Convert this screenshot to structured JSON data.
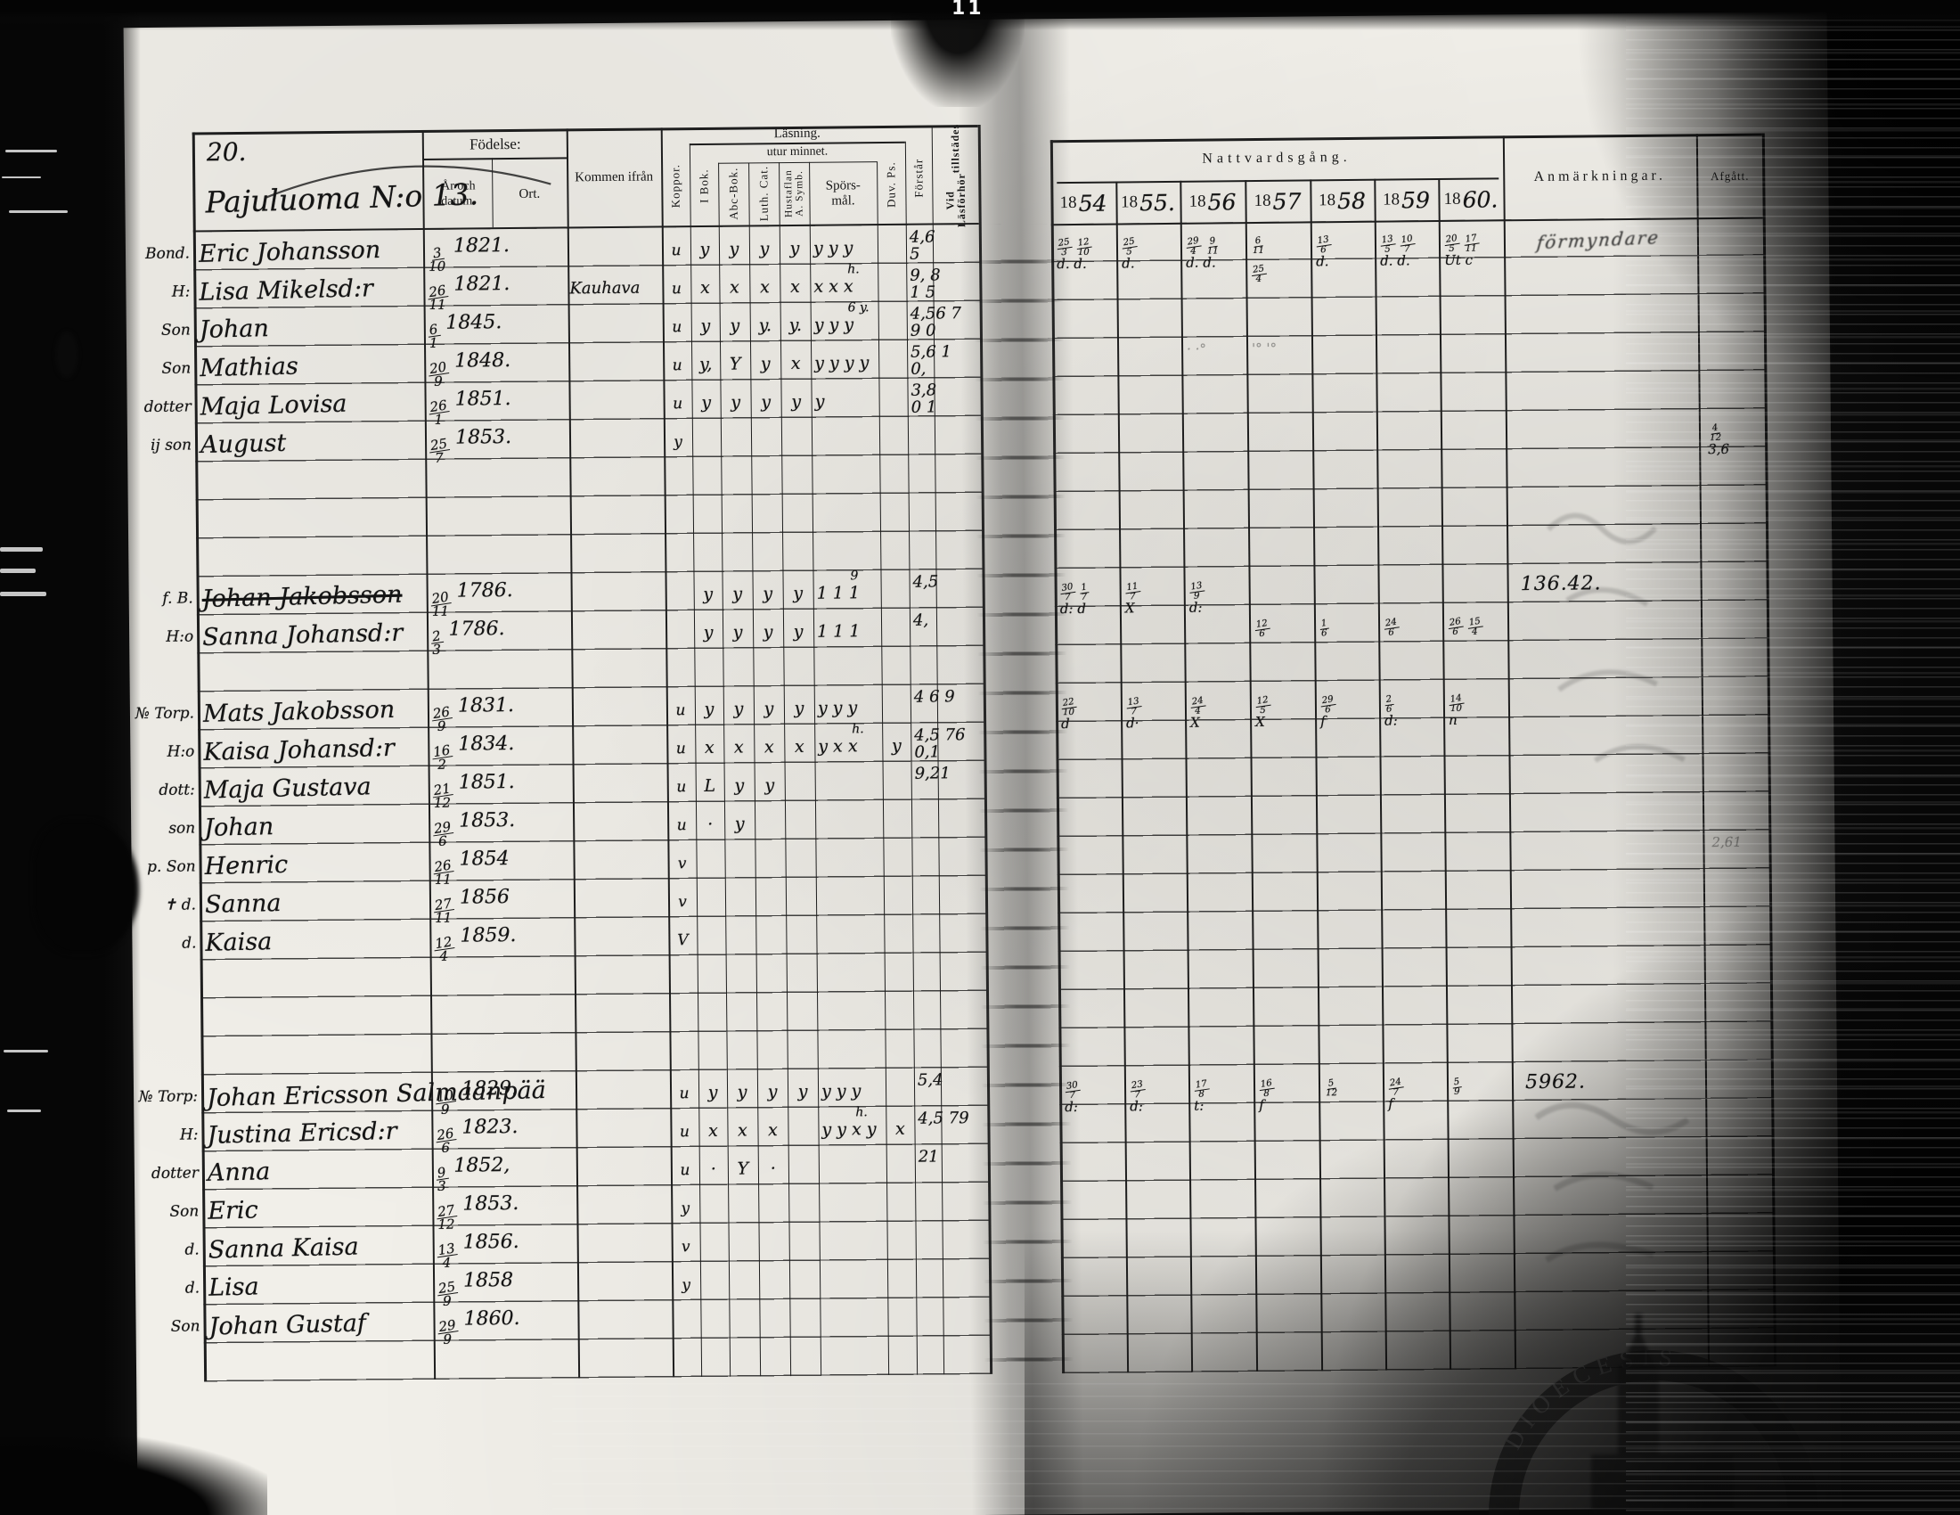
{
  "scan": {
    "top_mark": "11"
  },
  "page": {
    "number": "20.",
    "title": "Pajuluoma N:o 13."
  },
  "table": {
    "fodelse": "Födelse:",
    "ar_och_datum": "År och datum.",
    "ort": "Ort.",
    "kommen_ifran": "Kommen ifrån",
    "koppor": "Koppor.",
    "lasning": "Läsning.",
    "utur_minnet": "utur minnet.",
    "i_bok": "I Bok.",
    "abc_bok": "Abc-Bok.",
    "luth_cat": "Luth. Cat.",
    "hustaflan": "Hustaflan A. Symb.",
    "sporsmal_1": "Spörs-",
    "sporsmal_2": "mål.",
    "duv_ps": "Duv. Ps.",
    "forstar": "Förstår",
    "vid_lasforhor_1": "Vid Läsförhör",
    "vid_lasforhor_2": "tillstädes",
    "nattvardsgang": "Nattvardsgång.",
    "year_print_prefix": "18",
    "years": [
      "1854",
      "1855.",
      "1856",
      "1857",
      "1858",
      "1859",
      "1860."
    ],
    "anmarkningar": "Anmärkningar.",
    "afgatt": "Afgått."
  },
  "records": [
    {
      "line": 0,
      "role": "Bond.",
      "name": "Eric Johansson",
      "born": "3/10 1821.",
      "kop": "u",
      "marks": [
        "y",
        "y",
        "y",
        "y",
        "y y y",
        ""
      ],
      "vid": "4,6|5",
      "comm": [
        "25/3 12/10|d. d.",
        "25/5|d.",
        "29/4 9/11|d. d.",
        "6/11|25/4",
        "13/6|d.",
        "13/5 10/7|d. d.",
        "20/5 17/11|Ut c"
      ],
      "remark": "förmyndare"
    },
    {
      "line": 1,
      "role": "H:",
      "name": "Lisa Mikelsd:r",
      "born": "26/11 1821.",
      "from": "Kauhava",
      "kop": "u",
      "marks": [
        "x",
        "x",
        "x",
        "x",
        "x x x",
        ""
      ],
      "note": "h.",
      "vid": "9, 8|1 5"
    },
    {
      "line": 2,
      "role": "Son",
      "name": "Johan",
      "born": "6/1 1845.",
      "kop": "u",
      "marks": [
        "y",
        "y",
        "y.",
        "y.",
        "y y y",
        ""
      ],
      "note": "6 y.",
      "vid": "4,56 7|9 0"
    },
    {
      "line": 3,
      "role": "Son",
      "name": "Mathias",
      "born": "20/9 1848.",
      "kop": "u",
      "marks": [
        "y,",
        "Y",
        "y",
        "x",
        "y y y y",
        ""
      ],
      "vid": "5,6 1|0,",
      "comm": [
        "",
        "",
        "~· ·°",
        "~'° '°",
        "",
        "",
        ""
      ]
    },
    {
      "line": 4,
      "role": "dotter",
      "name": "Maja Lovisa",
      "born": "26/1 1851.",
      "kop": "u",
      "marks": [
        "y",
        "y",
        "y",
        "y",
        "y",
        ""
      ],
      "vid": "3,8|0 1"
    },
    {
      "line": 5,
      "role": "ij son",
      "name": "August",
      "born": "25/7 1853.",
      "kop": "y",
      "afgatt": "4/12|3,6"
    },
    {
      "line": 9,
      "role": "f. B.",
      "name": "Johan Jakobsson",
      "strike": true,
      "born": "20/11 1786.",
      "marks": [
        "y",
        "y",
        "y",
        "y",
        "1 1 1",
        ""
      ],
      "note": "9",
      "vid": "4,5",
      "comm": [
        "30/7 1/7|d: d",
        "11/7|X",
        "13/9|d:",
        "",
        "",
        "",
        ""
      ],
      "remark": "136.42."
    },
    {
      "line": 10,
      "role": "H:o",
      "name": "Sanna Johansd:r",
      "born": "2/3 1786.",
      "marks": [
        "y",
        "y",
        "y",
        "y",
        "1 1 1",
        ""
      ],
      "vid": "4,",
      "comm": [
        "",
        "",
        "",
        "12/6",
        "1/6",
        "24/6",
        "26/6 15/4"
      ]
    },
    {
      "line": 12,
      "role": "№ Torp.",
      "name": "Mats Jakobsson",
      "born": "26/9 1831.",
      "kop": "u",
      "marks": [
        "y",
        "y",
        "y",
        "y",
        "y y y",
        ""
      ],
      "vid": "4 6 9",
      "comm": [
        "22/10|d",
        "13/7|d·",
        "24/4|X",
        "12/5|X",
        "29/6|f",
        "2/6|d:",
        "14/10|n"
      ]
    },
    {
      "line": 13,
      "role": "H:o",
      "name": "Kaisa Johansd:r",
      "born": "16/2 1834.",
      "kop": "u",
      "marks": [
        "x",
        "x",
        "x",
        "x",
        "y x x",
        "y"
      ],
      "note": "h.",
      "vid": "4,5 76|0,1"
    },
    {
      "line": 14,
      "role": "dott:",
      "name": "Maja Gustava",
      "born": "21/12 1851.",
      "kop": "u",
      "marks": [
        "L",
        "y",
        "y",
        "",
        "",
        ""
      ],
      "vid": "9,21"
    },
    {
      "line": 15,
      "role": "son",
      "name": "Johan",
      "born": "29/6 1853.",
      "kop": "u",
      "marks": [
        "·",
        "y",
        "",
        "",
        "",
        ""
      ]
    },
    {
      "line": 16,
      "role": "p. Son",
      "name": "Henric",
      "born": "26/11 1854",
      "kop": "v",
      "afgatt": "~2,61"
    },
    {
      "line": 17,
      "role": "✝ d.",
      "name": "Sanna",
      "born": "27/11 1856",
      "kop": "v"
    },
    {
      "line": 18,
      "role": "d.",
      "name": "Kaisa",
      "born": "12/4 1859.",
      "kop": "V"
    },
    {
      "line": 22,
      "role": "№ Torp:",
      "name": "Johan Ericsson Salmaanpää",
      "born": "10/9 1829.",
      "kop": "u",
      "marks": [
        "y",
        "y",
        "y",
        "y",
        "y y y",
        ""
      ],
      "vid": "5,4",
      "comm": [
        "30/7|d:",
        "23/7|d:",
        "17/8|t:",
        "16/8|f",
        "5/12",
        "24/7|f",
        "5/9"
      ],
      "remark": "5962."
    },
    {
      "line": 23,
      "role": "H:",
      "name": "Justina Ericsd:r",
      "born": "26/6 1823.",
      "kop": "u",
      "marks": [
        "x",
        "x",
        "x",
        "",
        "y y x y",
        "x"
      ],
      "note": "h.",
      "vid": "4,5 79"
    },
    {
      "line": 24,
      "role": "dotter",
      "name": "Anna",
      "born": "9/3 1852,",
      "kop": "u",
      "marks": [
        "·",
        "Y",
        "·",
        "",
        "",
        ""
      ],
      "vid": "21"
    },
    {
      "line": 25,
      "role": "Son",
      "name": "Eric",
      "born": "27/12 1853.",
      "kop": "y"
    },
    {
      "line": 26,
      "role": "d.",
      "name": "Sanna Kaisa",
      "born": "13/4 1856.",
      "kop": "v"
    },
    {
      "line": 27,
      "role": "d.",
      "name": "Lisa",
      "born": "25/9 1858",
      "kop": "y"
    },
    {
      "line": 28,
      "role": "Son",
      "name": "Johan Gustaf",
      "born": "29/9 1860."
    }
  ],
  "stamp": {
    "text": "DIOECESIS"
  }
}
